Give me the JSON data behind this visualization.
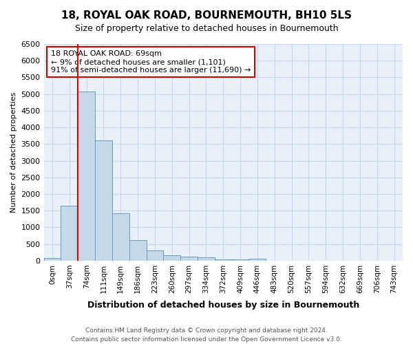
{
  "title": "18, ROYAL OAK ROAD, BOURNEMOUTH, BH10 5LS",
  "subtitle": "Size of property relative to detached houses in Bournemouth",
  "xlabel": "Distribution of detached houses by size in Bournemouth",
  "ylabel": "Number of detached properties",
  "annotation_line1": "18 ROYAL OAK ROAD: 69sqm",
  "annotation_line2": "← 9% of detached houses are smaller (1,101)",
  "annotation_line3": "91% of semi-detached houses are larger (11,690) →",
  "footnote1": "Contains HM Land Registry data © Crown copyright and database right 2024.",
  "footnote2": "Contains public sector information licensed under the Open Government Licence v3.0.",
  "bin_labels": [
    "0sqm",
    "37sqm",
    "74sqm",
    "111sqm",
    "149sqm",
    "186sqm",
    "223sqm",
    "260sqm",
    "297sqm",
    "334sqm",
    "372sqm",
    "409sqm",
    "446sqm",
    "483sqm",
    "520sqm",
    "557sqm",
    "594sqm",
    "632sqm",
    "669sqm",
    "706sqm",
    "743sqm"
  ],
  "bar_values": [
    75,
    1650,
    5080,
    3600,
    1420,
    620,
    310,
    155,
    120,
    95,
    45,
    30,
    65,
    0,
    0,
    0,
    0,
    0,
    0,
    0,
    0
  ],
  "bar_color": "#c5d8e8",
  "bar_edge_color": "#6a9cbf",
  "red_line_x": 1.5,
  "ylim": [
    0,
    6500
  ],
  "yticks": [
    0,
    500,
    1000,
    1500,
    2000,
    2500,
    3000,
    3500,
    4000,
    4500,
    5000,
    5500,
    6000,
    6500
  ],
  "bg_color": "#ffffff",
  "ax_bg_color": "#e8f0f8",
  "grid_color": "#c8d8e8",
  "annotation_box_color": "#ffffff",
  "annotation_box_edge": "#cc0000",
  "red_line_color": "#cc0000",
  "title_fontsize": 11,
  "subtitle_fontsize": 9,
  "xlabel_fontsize": 9,
  "ylabel_fontsize": 8,
  "tick_fontsize": 8,
  "xtick_fontsize": 7.5,
  "annotation_fontsize": 8,
  "footnote_fontsize": 6.5,
  "footnote_color": "#555555"
}
